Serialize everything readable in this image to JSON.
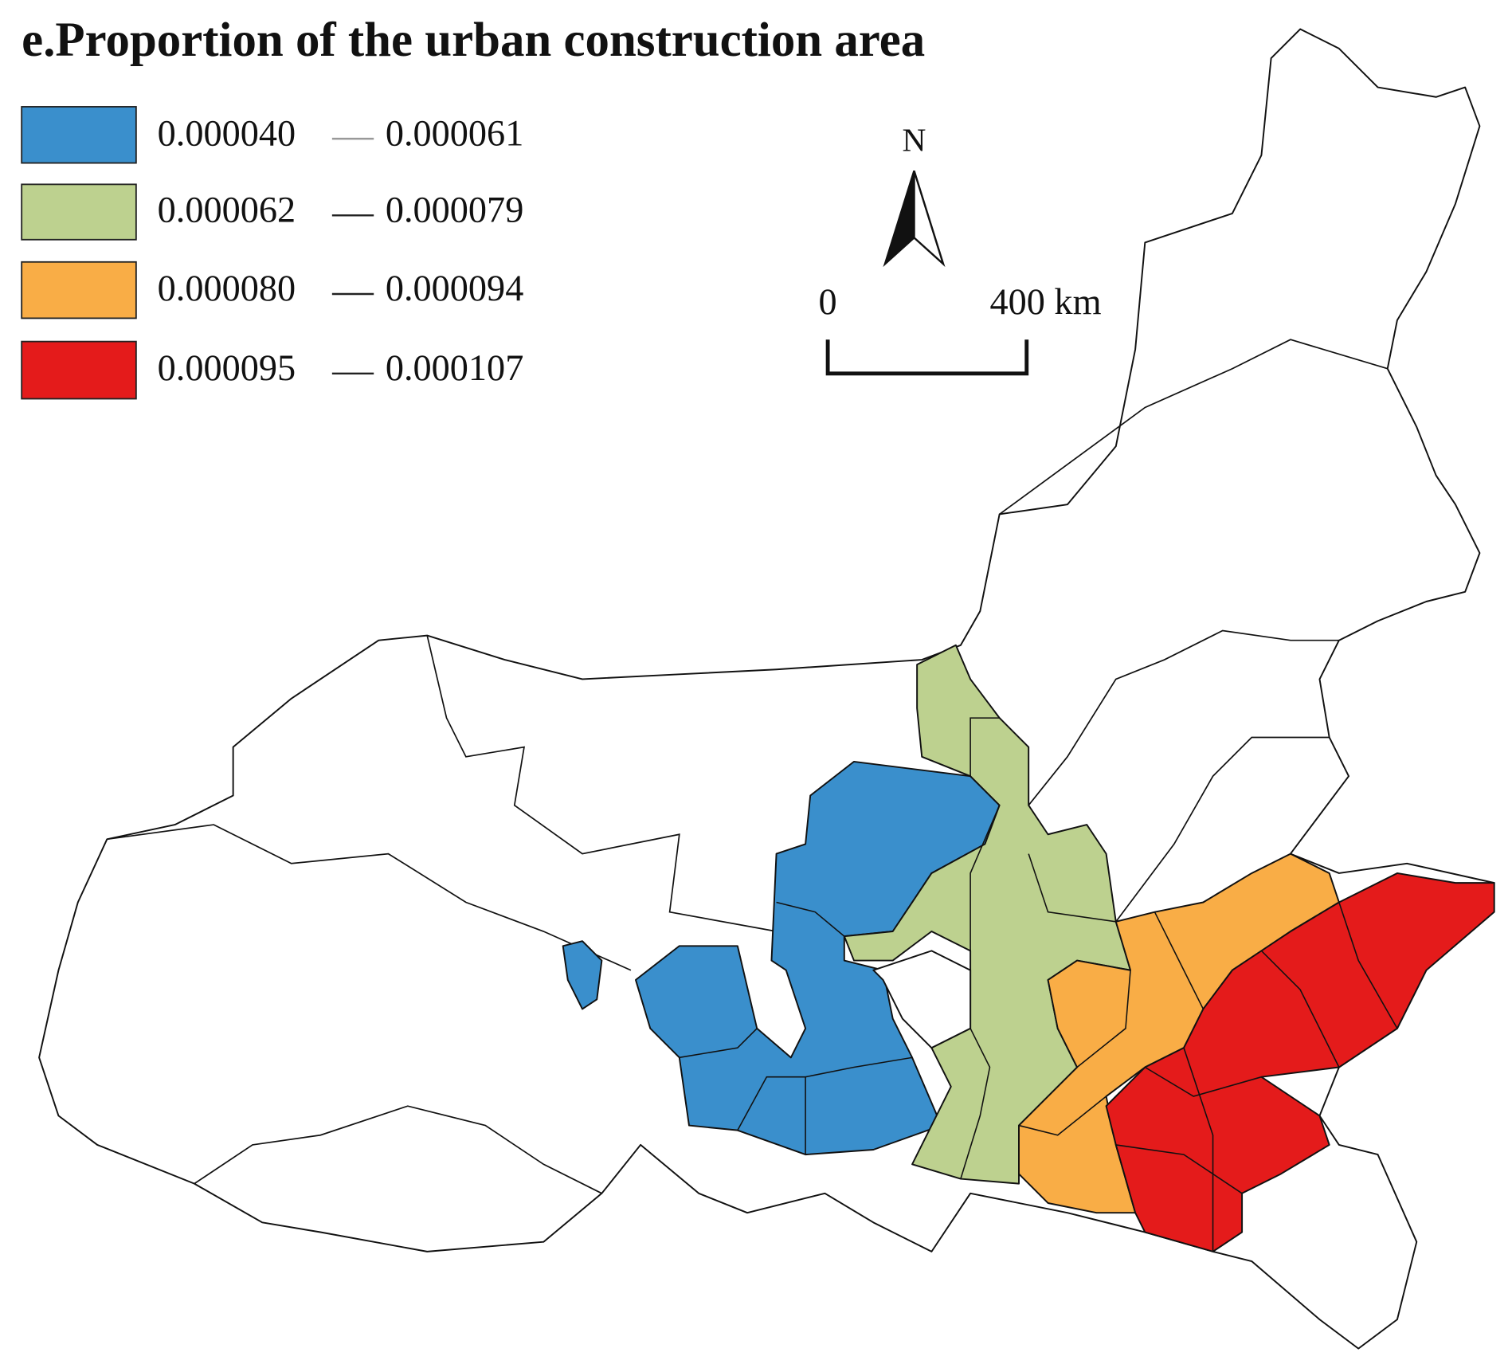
{
  "title": "e.Proportion of the urban construction area",
  "legend": {
    "items": [
      {
        "from": "0.000040",
        "to": "0.000061",
        "color": "#3a8fcc"
      },
      {
        "from": "0.000062",
        "to": "0.000079",
        "color": "#bdd18f"
      },
      {
        "from": "0.000080",
        "to": "0.000094",
        "color": "#f9ad46"
      },
      {
        "from": "0.000095",
        "to": "0.000107",
        "color": "#e41b1b"
      }
    ]
  },
  "north_arrow": {
    "label": "N"
  },
  "scale_bar": {
    "start": "0",
    "end": "400 km"
  }
}
